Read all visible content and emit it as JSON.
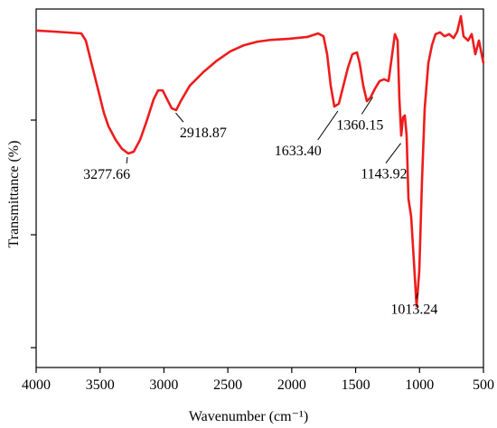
{
  "chart_data": {
    "type": "line",
    "xlabel": "Wavenumber (cm⁻¹)",
    "ylabel": "Transmittance (%)",
    "x": [
      4000,
      3858.6,
      3646.5,
      3611.1,
      3575.8,
      3540.4,
      3505.1,
      3469.7,
      3434.3,
      3377.8,
      3328.3,
      3278.8,
      3236.4,
      3186.9,
      3137.4,
      3080.8,
      3045.5,
      3010.1,
      2974.7,
      2939.4,
      2904.0,
      2868.7,
      2798.0,
      2691.9,
      2585.9,
      2479.8,
      2373.7,
      2267.7,
      2161.6,
      2020.2,
      1878.8,
      1793.9,
      1751.5,
      1723.2,
      1694.9,
      1666.7,
      1631.3,
      1596.0,
      1560.6,
      1525.3,
      1489.9,
      1468.7,
      1440.4,
      1412.1,
      1383.8,
      1348.5,
      1313.1,
      1277.8,
      1242.4,
      1214.1,
      1192.9,
      1171.7,
      1157.6,
      1143.4,
      1129.3,
      1115.2,
      1101.0,
      1086.9,
      1065.7,
      1044.4,
      1023.2,
      1002.0,
      980.8,
      959.6,
      931.3,
      903.0,
      874.7,
      839.4,
      804.0,
      768.7,
      733.3,
      705.1,
      676.8,
      655.6,
      620.2,
      591.9,
      563.6,
      535.4,
      500
    ],
    "series": [
      {
        "color": "#ee1c1c",
        "values": [
          94.0,
          93.7,
          93.2,
          91.2,
          86.1,
          81.1,
          76.1,
          71.0,
          67.3,
          63.5,
          61.0,
          59.7,
          60.2,
          63.5,
          68.5,
          74.8,
          77.3,
          77.3,
          74.8,
          72.3,
          71.8,
          74.3,
          78.6,
          82.4,
          85.6,
          88.2,
          89.9,
          90.9,
          91.4,
          91.7,
          92.2,
          93.2,
          92.4,
          87.4,
          78.6,
          72.8,
          73.6,
          78.6,
          83.6,
          87.4,
          87.9,
          84.9,
          78.6,
          74.3,
          75.3,
          77.8,
          79.9,
          80.4,
          79.9,
          87.4,
          93.0,
          91.2,
          74.8,
          64.7,
          69.8,
          70.3,
          64.7,
          47.1,
          42.1,
          29.7,
          17.1,
          27.0,
          52.1,
          72.3,
          84.9,
          89.9,
          93.0,
          93.5,
          92.4,
          93.0,
          91.9,
          93.7,
          98.0,
          92.4,
          91.2,
          93.0,
          87.4,
          91.2,
          84.9
        ]
      }
    ],
    "xlim": [
      4000,
      500
    ],
    "ylim": [
      0,
      100
    ],
    "xticks": [
      4000,
      3500,
      3000,
      2500,
      2000,
      1500,
      1000,
      500
    ],
    "annotations": [
      {
        "text": "3277.66",
        "x": 3277.66
      },
      {
        "text": "2918.87",
        "x": 2918.87
      },
      {
        "text": "1633.40",
        "x": 1633.4
      },
      {
        "text": "1360.15",
        "x": 1360.15
      },
      {
        "text": "1143.92",
        "x": 1143.92
      },
      {
        "text": "1013.24",
        "x": 1013.24
      }
    ]
  }
}
